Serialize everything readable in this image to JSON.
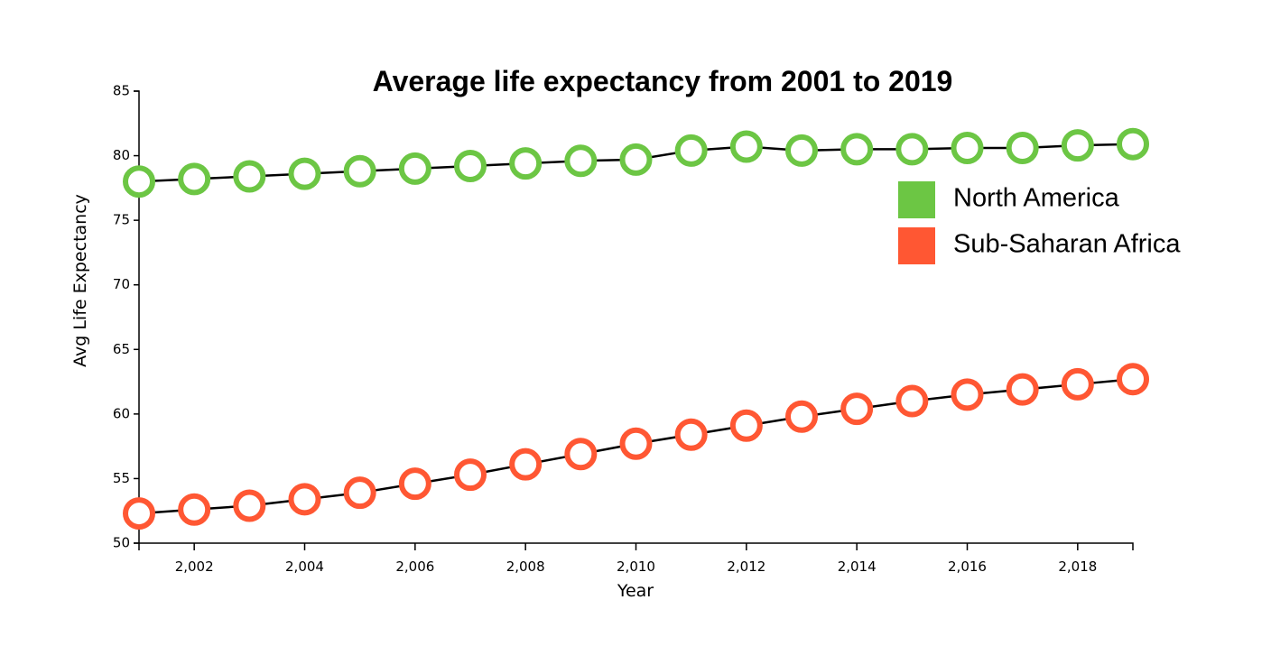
{
  "chart_data": {
    "type": "line",
    "title": "Average life expectancy from 2001 to 2019",
    "xlabel": "Year",
    "ylabel": "Avg Life Expectancy",
    "xlim": [
      2001,
      2019
    ],
    "ylim": [
      50,
      85
    ],
    "x": [
      2001,
      2002,
      2003,
      2004,
      2005,
      2006,
      2007,
      2008,
      2009,
      2010,
      2011,
      2012,
      2013,
      2014,
      2015,
      2016,
      2017,
      2018,
      2019
    ],
    "x_ticks": [
      2002,
      2004,
      2006,
      2008,
      2010,
      2012,
      2014,
      2016,
      2018
    ],
    "x_tick_labels": [
      "2,002",
      "2,004",
      "2,006",
      "2,008",
      "2,010",
      "2,012",
      "2,014",
      "2,016",
      "2,018"
    ],
    "y_ticks": [
      50,
      55,
      60,
      65,
      70,
      75,
      80,
      85
    ],
    "y_tick_labels": [
      "50",
      "55",
      "60",
      "65",
      "70",
      "75",
      "80",
      "85"
    ],
    "grid": false,
    "legend_position": "top-right",
    "line_color": "#000000",
    "marker_fill": "#ffffff",
    "series": [
      {
        "name": "North America",
        "color": "#6cc644",
        "values": [
          78.0,
          78.2,
          78.4,
          78.6,
          78.8,
          79.0,
          79.2,
          79.4,
          79.6,
          79.7,
          80.4,
          80.7,
          80.4,
          80.5,
          80.5,
          80.6,
          80.6,
          80.8,
          80.9
        ]
      },
      {
        "name": "Sub-Saharan Africa",
        "color": "#ff5733",
        "values": [
          52.3,
          52.6,
          52.9,
          53.4,
          53.9,
          54.6,
          55.3,
          56.1,
          56.9,
          57.7,
          58.4,
          59.1,
          59.8,
          60.4,
          61.0,
          61.5,
          61.9,
          62.3,
          62.7
        ]
      }
    ]
  }
}
